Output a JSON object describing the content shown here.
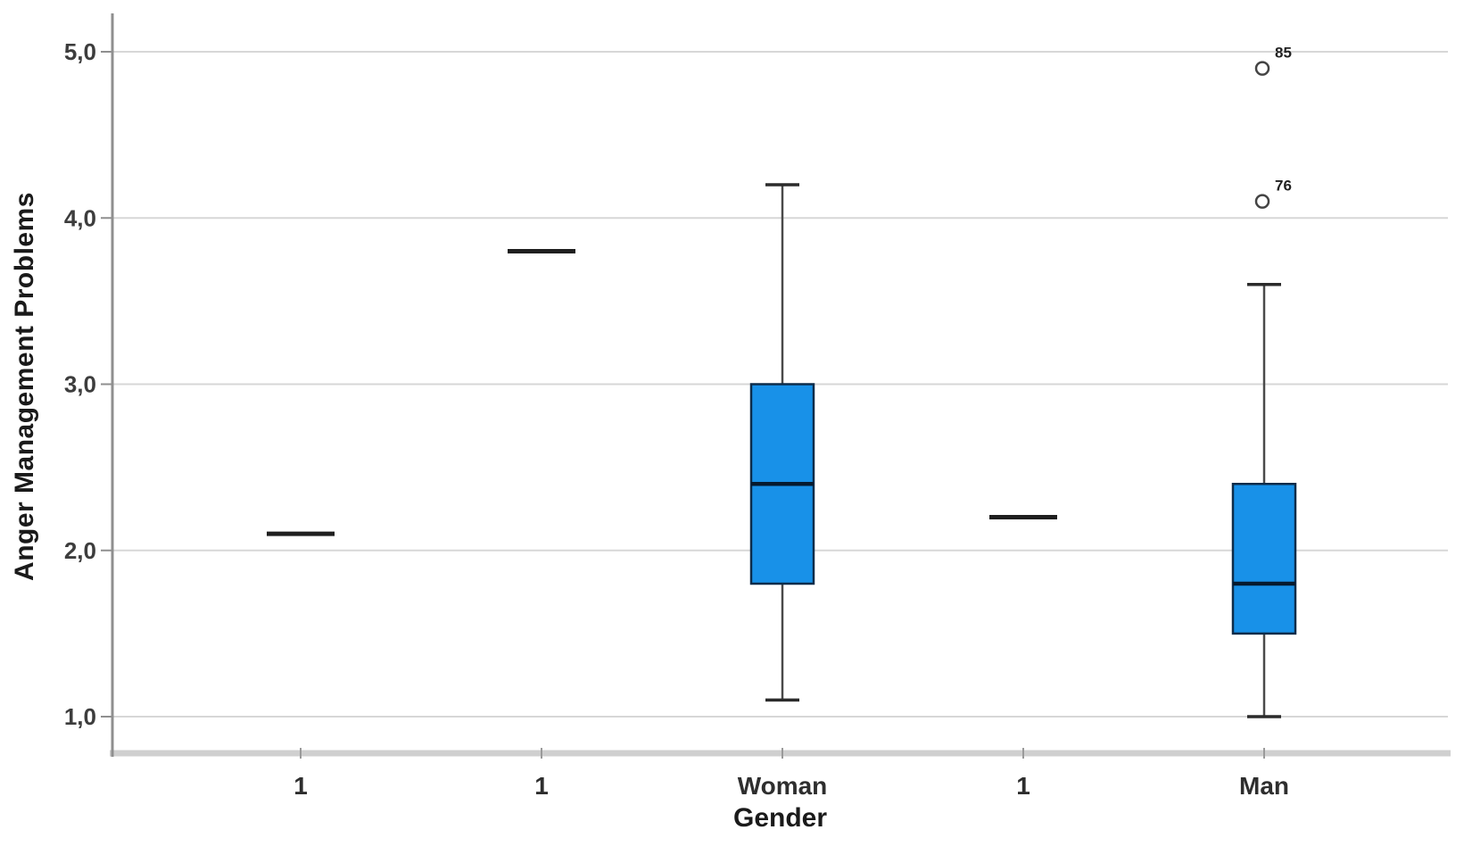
{
  "chart_data": {
    "type": "boxplot",
    "title": "",
    "xlabel": "Gender",
    "ylabel": "Anger Management Problems",
    "ylim": [
      1.0,
      5.0
    ],
    "grid": "horizontal",
    "legend": "none",
    "decimal_separator": ",",
    "yticks": [
      {
        "value": 1.0,
        "label": "1,0"
      },
      {
        "value": 2.0,
        "label": "2,0"
      },
      {
        "value": 3.0,
        "label": "3,0"
      },
      {
        "value": 4.0,
        "label": "4,0"
      },
      {
        "value": 5.0,
        "label": "5,0"
      }
    ],
    "categories": [
      "1",
      "1",
      "Woman",
      "1",
      "Man"
    ],
    "boxes": [
      {
        "category": "1",
        "type": "single-line",
        "value": 2.1
      },
      {
        "category": "1",
        "type": "single-line",
        "value": 3.8
      },
      {
        "category": "Woman",
        "type": "box",
        "whisker_low": 1.1,
        "q1": 1.8,
        "median": 2.4,
        "q3": 3.0,
        "whisker_high": 4.2,
        "outliers": []
      },
      {
        "category": "1",
        "type": "single-line",
        "value": 2.2
      },
      {
        "category": "Man",
        "type": "box",
        "whisker_low": 1.0,
        "q1": 1.5,
        "median": 1.8,
        "q3": 2.4,
        "whisker_high": 3.6,
        "outliers": [
          {
            "value": 4.1,
            "label": "76"
          },
          {
            "value": 4.9,
            "label": "85"
          }
        ]
      }
    ],
    "colors": {
      "box_fill": "#1891E8",
      "box_border": "#0d2c4a",
      "median": "#061a2e",
      "whisker": "#4a4a4a",
      "whisker_cap": "#2b2b2b",
      "single_line": "#1f1f1f",
      "gridline": "#d7d7d7",
      "y_axis_line": "#8f8f8f",
      "x_axis_line": "#cfcfcf",
      "tick": "#9a9a9a",
      "outlier_stroke": "#444444",
      "background": "#ffffff"
    }
  }
}
